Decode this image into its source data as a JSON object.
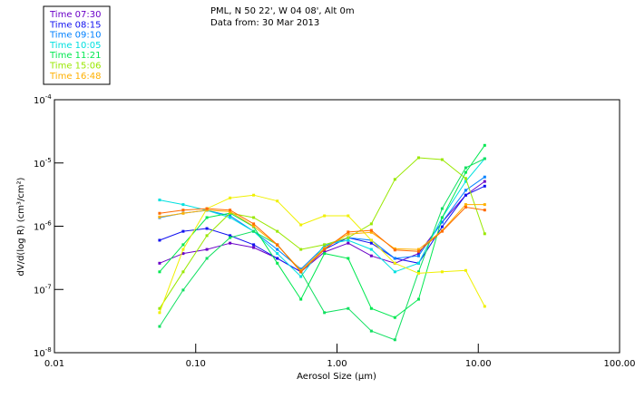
{
  "chart_data": {
    "type": "line",
    "title_lines": [
      "PML, N 50 22', W 04 08', Alt 0m",
      "Data from: 30 Mar 2013"
    ],
    "xlabel": "Aerosol Size (μm)",
    "ylabel": "dV/d(log R) (cm³/cm²)",
    "xscale": "log",
    "yscale": "log",
    "xlim": [
      0.01,
      100
    ],
    "ylim": [
      1e-08,
      0.0001
    ],
    "xticks": [
      {
        "value": 0.01,
        "label": "0.01"
      },
      {
        "value": 0.1,
        "label": "0.10"
      },
      {
        "value": 1,
        "label": "1.00"
      },
      {
        "value": 10,
        "label": "10.00"
      },
      {
        "value": 100,
        "label": "100.00"
      }
    ],
    "yticks": [
      {
        "value": 0.0001,
        "base": "10",
        "exp": "-4"
      },
      {
        "value": 1e-05,
        "base": "10",
        "exp": "-5"
      },
      {
        "value": 1e-06,
        "base": "10",
        "exp": "-6"
      },
      {
        "value": 1e-07,
        "base": "10",
        "exp": "-7"
      },
      {
        "value": 1e-08,
        "base": "10",
        "exp": "-8"
      }
    ],
    "grid": false,
    "legend_position": "top-left outside",
    "x": [
      0.0555,
      0.0815,
      0.12,
      0.175,
      0.257,
      0.378,
      0.555,
      0.815,
      1.2,
      1.75,
      2.57,
      3.78,
      5.55,
      8.15,
      11.1
    ],
    "series": [
      {
        "name": "Time 07:30",
        "color": "#6a00c8",
        "legend": true,
        "values": [
          2.6e-07,
          3.7e-07,
          4.3e-07,
          5.4e-07,
          4.6e-07,
          3.1e-07,
          1.9e-07,
          3.9e-07,
          5.4e-07,
          3.4e-07,
          2.6e-07,
          3.7e-07,
          1.16e-06,
          3.1e-06,
          5.1e-06
        ]
      },
      {
        "name": "Time 08:15",
        "color": "#1010f0",
        "legend": true,
        "values": [
          6e-07,
          8.3e-07,
          9.2e-07,
          7.1e-07,
          5.1e-07,
          3.1e-07,
          1.9e-07,
          4.3e-07,
          6.6e-07,
          5.4e-07,
          3.1e-07,
          2.6e-07,
          9.8e-07,
          3.1e-06,
          4.3e-06
        ]
      },
      {
        "name": "Time 09:10",
        "color": "#0080ff",
        "legend": true,
        "values": [
          1.37e-06,
          1.61e-06,
          1.78e-06,
          1.46e-06,
          8.3e-07,
          4.3e-07,
          2.1e-07,
          4.8e-07,
          6.6e-07,
          6e-07,
          3.1e-07,
          3.4e-07,
          1.16e-06,
          3.7e-06,
          6e-06
        ]
      },
      {
        "name": "Time 10:05",
        "color": "#00e0e0",
        "legend": true,
        "values": [
          2.6e-06,
          2.2e-06,
          1.78e-06,
          1.37e-06,
          8.3e-07,
          3.7e-07,
          1.6e-07,
          5.1e-07,
          6e-07,
          4.3e-07,
          1.9e-07,
          2.6e-07,
          1.37e-06,
          5.1e-06,
          1.17e-05
        ]
      },
      {
        "name": "Time 11:21",
        "color": "#00e850",
        "legend": true,
        "values": [
          1.9e-07,
          5.1e-07,
          1.37e-06,
          1.61e-06,
          9.8e-07,
          2.6e-07,
          7e-08,
          3.7e-07,
          3.1e-07,
          5e-08,
          3.6e-08,
          7e-08,
          1.37e-06,
          7.1e-06,
          1.9e-05
        ]
      },
      {
        "name": "Time 11:21",
        "color": "#10e060",
        "legend": false,
        "values": [
          2.6e-08,
          9.8e-08,
          3.1e-07,
          6.6e-07,
          8.3e-07,
          5.1e-07,
          1.9e-07,
          4.3e-08,
          5e-08,
          2.2e-08,
          1.6e-08,
          1.9e-07,
          1.9e-06,
          8.4e-06,
          1.17e-05
        ]
      },
      {
        "name": "Time 15:06",
        "color": "#99e800",
        "legend": true,
        "values": [
          5e-08,
          1.9e-07,
          7.1e-07,
          1.61e-06,
          1.37e-06,
          8.3e-07,
          4.3e-07,
          5.1e-07,
          6.6e-07,
          1.09e-06,
          5.5e-06,
          1.21e-05,
          1.13e-05,
          5.7e-06,
          7.6e-07
        ]
      },
      {
        "name": "Time 15:06",
        "color": "#f0f000",
        "legend": false,
        "values": [
          4.3e-08,
          4.3e-07,
          1.9e-06,
          2.8e-06,
          3.1e-06,
          2.5e-06,
          1.05e-06,
          1.46e-06,
          1.46e-06,
          6e-07,
          2.6e-07,
          1.8e-07,
          1.9e-07,
          2e-07,
          5.4e-08
        ]
      },
      {
        "name": "Time 16:48",
        "color": "#ffb000",
        "legend": true,
        "values": [
          1.4e-06,
          1.6e-06,
          1.8e-06,
          1.7e-06,
          1e-06,
          5e-07,
          2e-07,
          4.5e-07,
          7.5e-07,
          8e-07,
          4.4e-07,
          4.3e-07,
          8.5e-07,
          2.2e-06,
          2.2e-06
        ]
      },
      {
        "name": "Time 16:48",
        "color": "#ff6a00",
        "legend": false,
        "values": [
          1.6e-06,
          1.8e-06,
          1.9e-06,
          1.8e-06,
          1.09e-06,
          5.1e-07,
          1.9e-07,
          4.3e-07,
          8.1e-07,
          8.6e-07,
          4.2e-07,
          4e-07,
          8.3e-07,
          2e-06,
          1.8e-06
        ]
      }
    ]
  }
}
